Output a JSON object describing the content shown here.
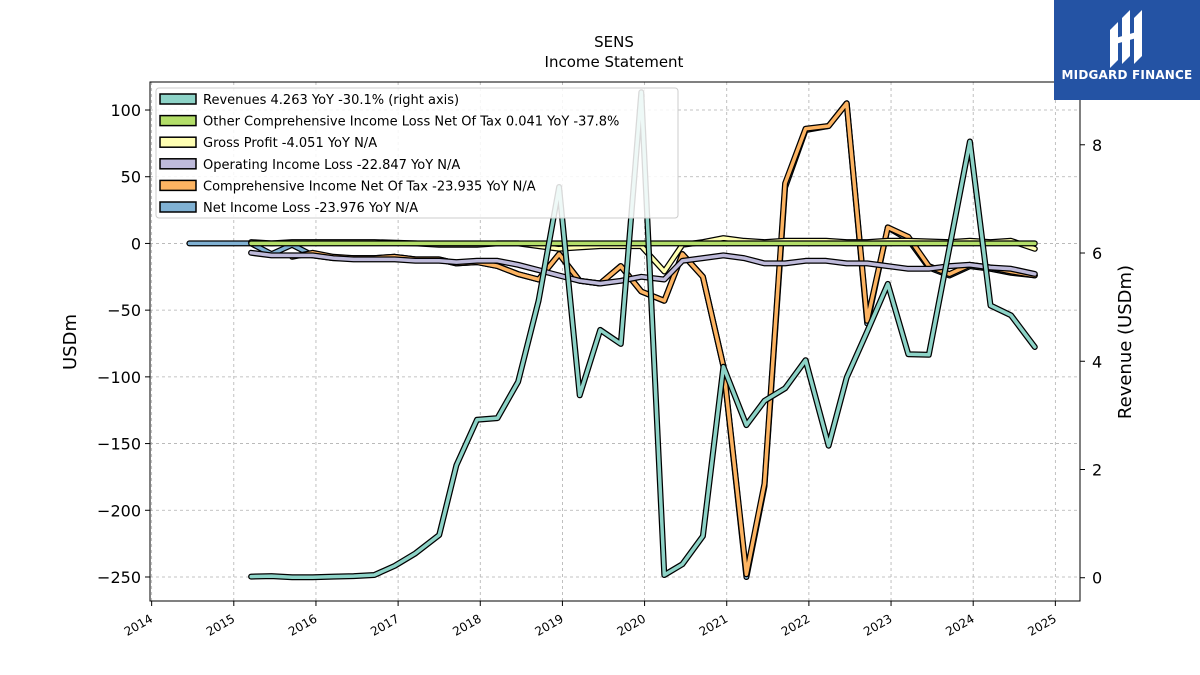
{
  "chart_data": {
    "type": "line",
    "ticker": "SENS",
    "title": "Income Statement",
    "ylabel_left": "USDm",
    "ylabel_right": "Revenue (USDm)",
    "xlim": [
      2013.98,
      2025.3
    ],
    "ylim_left": [
      -268,
      121
    ],
    "ylim_right": [
      -0.43,
      9.16
    ],
    "x_ticks": [
      2014,
      2015,
      2016,
      2017,
      2018,
      2019,
      2020,
      2021,
      2022,
      2023,
      2024,
      2025
    ],
    "y_ticks_left": [
      100,
      50,
      0,
      -50,
      -100,
      -150,
      -200,
      -250
    ],
    "y_ticks_right": [
      0,
      2,
      4,
      6,
      8
    ],
    "grid": true,
    "legend_position": "top-left",
    "series": [
      {
        "name": "Revenues",
        "legend": "Revenues  4.263 YoY -30.1% (right axis)",
        "color": "#8dd3c7",
        "axis": "right",
        "points": [
          [
            2015.21,
            0.02
          ],
          [
            2015.46,
            0.03
          ],
          [
            2015.71,
            0.01
          ],
          [
            2015.96,
            0.01
          ],
          [
            2016.21,
            0.02
          ],
          [
            2016.46,
            0.03
          ],
          [
            2016.71,
            0.05
          ],
          [
            2016.96,
            0.22
          ],
          [
            2017.21,
            0.45
          ],
          [
            2017.5,
            0.79
          ],
          [
            2017.71,
            2.08
          ],
          [
            2017.96,
            2.92
          ],
          [
            2018.21,
            2.95
          ],
          [
            2018.46,
            3.62
          ],
          [
            2018.71,
            5.12
          ],
          [
            2018.96,
            7.22
          ],
          [
            2019.21,
            3.37
          ],
          [
            2019.46,
            4.58
          ],
          [
            2019.71,
            4.32
          ],
          [
            2019.96,
            8.97
          ],
          [
            2020.24,
            0.05
          ],
          [
            2020.46,
            0.25
          ],
          [
            2020.71,
            0.77
          ],
          [
            2020.96,
            3.9
          ],
          [
            2021.24,
            2.82
          ],
          [
            2021.46,
            3.27
          ],
          [
            2021.71,
            3.5
          ],
          [
            2021.96,
            4.02
          ],
          [
            2022.24,
            2.44
          ],
          [
            2022.46,
            3.7
          ],
          [
            2022.71,
            4.55
          ],
          [
            2022.96,
            5.43
          ],
          [
            2023.21,
            4.13
          ],
          [
            2023.46,
            4.12
          ],
          [
            2023.96,
            8.06
          ],
          [
            2024.21,
            5.03
          ],
          [
            2024.46,
            4.85
          ],
          [
            2024.75,
            4.263
          ]
        ]
      },
      {
        "name": "Other Comprehensive Income Loss Net Of Tax",
        "legend": "Other Comprehensive Income Loss Net Of Tax  0.041 YoY -37.8%",
        "color": "#b3de69",
        "axis": "left",
        "points": [
          [
            2015.21,
            0
          ],
          [
            2015.71,
            0
          ],
          [
            2016.21,
            0
          ],
          [
            2016.71,
            0
          ],
          [
            2017.21,
            0
          ],
          [
            2017.71,
            0
          ],
          [
            2018.21,
            0
          ],
          [
            2018.71,
            0
          ],
          [
            2019.21,
            0
          ],
          [
            2019.71,
            0
          ],
          [
            2020.21,
            0
          ],
          [
            2020.71,
            0
          ],
          [
            2021.21,
            0
          ],
          [
            2021.71,
            0
          ],
          [
            2022.21,
            0
          ],
          [
            2022.71,
            0
          ],
          [
            2023.21,
            0
          ],
          [
            2023.71,
            0
          ],
          [
            2024.21,
            0
          ],
          [
            2024.75,
            0.041
          ]
        ]
      },
      {
        "name": "Gross Profit",
        "legend": "Gross Profit  -4.051 YoY N/A",
        "color": "#ffffb3",
        "axis": "left",
        "points": [
          [
            2015.21,
            1
          ],
          [
            2015.46,
            0
          ],
          [
            2015.71,
            1
          ],
          [
            2015.96,
            1
          ],
          [
            2016.21,
            1
          ],
          [
            2016.71,
            1
          ],
          [
            2017.21,
            0
          ],
          [
            2017.5,
            -1
          ],
          [
            2017.96,
            -1
          ],
          [
            2018.21,
            0
          ],
          [
            2018.46,
            0
          ],
          [
            2018.71,
            -2
          ],
          [
            2018.96,
            -4
          ],
          [
            2019.21,
            -3
          ],
          [
            2019.46,
            -2
          ],
          [
            2019.71,
            -2
          ],
          [
            2019.96,
            -2
          ],
          [
            2020.24,
            -21
          ],
          [
            2020.46,
            -1
          ],
          [
            2020.71,
            1
          ],
          [
            2020.96,
            4
          ],
          [
            2021.21,
            2
          ],
          [
            2021.46,
            1
          ],
          [
            2021.71,
            2
          ],
          [
            2021.96,
            2
          ],
          [
            2022.21,
            2
          ],
          [
            2022.46,
            1
          ],
          [
            2022.71,
            1
          ],
          [
            2022.96,
            2
          ],
          [
            2023.21,
            2
          ],
          [
            2023.71,
            1
          ],
          [
            2023.96,
            2
          ],
          [
            2024.21,
            1
          ],
          [
            2024.46,
            2
          ],
          [
            2024.75,
            -4.051
          ]
        ]
      },
      {
        "name": "Operating Income Loss",
        "legend": "Operating Income Loss  -22.847 YoY N/A",
        "color": "#bebada",
        "axis": "left",
        "points": [
          [
            2015.21,
            -7
          ],
          [
            2015.46,
            -9
          ],
          [
            2015.71,
            -9
          ],
          [
            2015.96,
            -9
          ],
          [
            2016.21,
            -11
          ],
          [
            2016.46,
            -12
          ],
          [
            2016.71,
            -12
          ],
          [
            2016.96,
            -12
          ],
          [
            2017.21,
            -13
          ],
          [
            2017.5,
            -13
          ],
          [
            2017.71,
            -14
          ],
          [
            2017.96,
            -13
          ],
          [
            2018.21,
            -13
          ],
          [
            2018.46,
            -16
          ],
          [
            2018.71,
            -20
          ],
          [
            2018.96,
            -24
          ],
          [
            2019.21,
            -28
          ],
          [
            2019.46,
            -30
          ],
          [
            2019.71,
            -28
          ],
          [
            2019.96,
            -25
          ],
          [
            2020.24,
            -27
          ],
          [
            2020.46,
            -13
          ],
          [
            2020.71,
            -11
          ],
          [
            2020.96,
            -9
          ],
          [
            2021.21,
            -11
          ],
          [
            2021.46,
            -15
          ],
          [
            2021.71,
            -15
          ],
          [
            2021.96,
            -13
          ],
          [
            2022.21,
            -13
          ],
          [
            2022.46,
            -15
          ],
          [
            2022.71,
            -15
          ],
          [
            2022.96,
            -17
          ],
          [
            2023.21,
            -19
          ],
          [
            2023.46,
            -19
          ],
          [
            2023.71,
            -17
          ],
          [
            2023.96,
            -16
          ],
          [
            2024.21,
            -18
          ],
          [
            2024.46,
            -19
          ],
          [
            2024.75,
            -22.847
          ]
        ]
      },
      {
        "name": "Comprehensive Income Net Of Tax",
        "legend": "Comprehensive Income Net Of Tax  -23.935 YoY N/A",
        "color": "#fdb462",
        "axis": "left",
        "points": [
          [
            2015.71,
            -10
          ],
          [
            2015.96,
            -7
          ],
          [
            2016.21,
            -10
          ],
          [
            2016.46,
            -11
          ],
          [
            2016.71,
            -11
          ],
          [
            2016.96,
            -10
          ],
          [
            2017.21,
            -12
          ],
          [
            2017.5,
            -12
          ],
          [
            2017.71,
            -15
          ],
          [
            2017.96,
            -14
          ],
          [
            2018.21,
            -17
          ],
          [
            2018.46,
            -23
          ],
          [
            2018.71,
            -27
          ],
          [
            2018.96,
            -8
          ],
          [
            2019.21,
            -28
          ],
          [
            2019.46,
            -30
          ],
          [
            2019.71,
            -17
          ],
          [
            2019.96,
            -36
          ],
          [
            2020.24,
            -43
          ],
          [
            2020.46,
            -8
          ],
          [
            2020.71,
            -25
          ],
          [
            2020.96,
            -92
          ],
          [
            2021.24,
            -248
          ],
          [
            2021.46,
            -180
          ],
          [
            2021.71,
            45
          ],
          [
            2021.96,
            86
          ],
          [
            2022.24,
            88
          ],
          [
            2022.46,
            105
          ],
          [
            2022.71,
            -58
          ],
          [
            2022.96,
            12
          ],
          [
            2023.21,
            5
          ],
          [
            2023.46,
            -17
          ],
          [
            2023.71,
            -23
          ],
          [
            2023.96,
            -16
          ],
          [
            2024.21,
            -18
          ],
          [
            2024.46,
            -21
          ],
          [
            2024.75,
            -23.935
          ]
        ]
      },
      {
        "name": "Net Income Loss",
        "legend": "Net Income Loss  -23.976 YoY N/A",
        "color": "#80b1d3",
        "axis": "left",
        "points": [
          [
            2014.46,
            0
          ],
          [
            2015.21,
            0
          ],
          [
            2015.46,
            -8
          ],
          [
            2015.71,
            -1
          ],
          [
            2015.96,
            -9
          ],
          [
            2016.21,
            -11
          ],
          [
            2016.46,
            -11
          ],
          [
            2016.71,
            -11
          ],
          [
            2016.96,
            -10
          ],
          [
            2017.21,
            -12
          ],
          [
            2017.5,
            -12
          ],
          [
            2017.71,
            -15
          ],
          [
            2017.96,
            -14
          ],
          [
            2018.21,
            -17
          ],
          [
            2018.46,
            -23
          ],
          [
            2018.71,
            -27
          ],
          [
            2018.96,
            -8
          ],
          [
            2019.21,
            -28
          ],
          [
            2019.46,
            -30
          ],
          [
            2019.71,
            -17
          ],
          [
            2019.96,
            -36
          ],
          [
            2020.24,
            -43
          ],
          [
            2020.46,
            -8
          ],
          [
            2020.71,
            -25
          ],
          [
            2020.96,
            -92
          ],
          [
            2021.24,
            -250
          ],
          [
            2021.46,
            -182
          ],
          [
            2021.71,
            42
          ],
          [
            2021.96,
            85
          ],
          [
            2022.24,
            88
          ],
          [
            2022.46,
            105
          ],
          [
            2022.71,
            -60
          ],
          [
            2022.96,
            12
          ],
          [
            2023.21,
            3
          ],
          [
            2023.46,
            -18
          ],
          [
            2023.71,
            -24
          ],
          [
            2023.96,
            -17
          ],
          [
            2024.21,
            -19
          ],
          [
            2024.46,
            -22
          ],
          [
            2024.75,
            -23.976
          ]
        ]
      }
    ],
    "draw_order": [
      5,
      4,
      3,
      2,
      1,
      0
    ]
  },
  "logo": {
    "text": "MIDGARD FINANCE"
  }
}
